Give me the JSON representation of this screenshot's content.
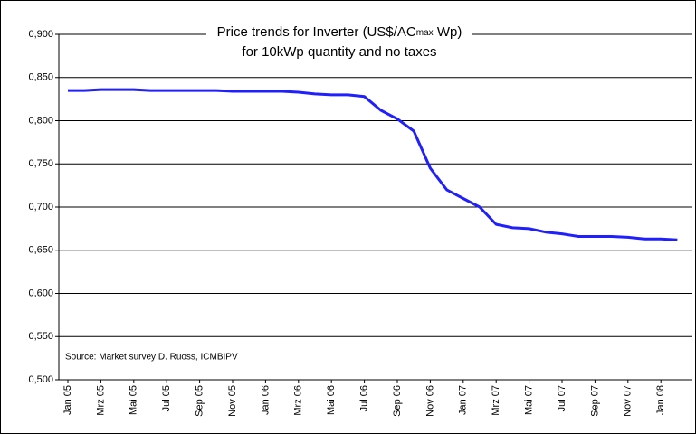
{
  "chart_data": {
    "type": "line",
    "title": [
      "Price trends for Inverter (US$/AC",
      "max",
      " Wp)"
    ],
    "subtitle": "for 10kWp quantity and no taxes",
    "annotation": "Source: Market survey D. Ruoss, ICMBIPV",
    "categories": [
      "Jan 05",
      null,
      "Mrz 05",
      null,
      "Mai 05",
      null,
      "Jul 05",
      null,
      "Sep 05",
      null,
      "Nov 05",
      null,
      "Jan 06",
      null,
      "Mrz 06",
      null,
      "Mai 06",
      null,
      "Jul 06",
      null,
      "Sep 06",
      null,
      "Nov 06",
      null,
      "Jan 07",
      null,
      "Mrz 07",
      null,
      "Mai 07",
      null,
      "Jul 07",
      null,
      "Sep 07",
      null,
      "Nov 07",
      null,
      "Jan 08",
      null
    ],
    "values": [
      0.835,
      0.835,
      0.836,
      0.836,
      0.836,
      0.835,
      0.835,
      0.835,
      0.835,
      0.835,
      0.834,
      0.834,
      0.834,
      0.834,
      0.833,
      0.831,
      0.83,
      0.83,
      0.828,
      0.812,
      0.802,
      0.788,
      0.745,
      0.72,
      0.71,
      0.7,
      0.68,
      0.676,
      0.675,
      0.671,
      0.669,
      0.666,
      0.666,
      0.666,
      0.665,
      0.663,
      0.663,
      0.662
    ],
    "color": "#2020ff",
    "ylim": [
      0.5,
      0.9
    ],
    "yticks": [
      {
        "value": 0.5,
        "label": "0,500"
      },
      {
        "value": 0.55,
        "label": "0,550"
      },
      {
        "value": 0.6,
        "label": "0,600"
      },
      {
        "value": 0.65,
        "label": "0,650"
      },
      {
        "value": 0.7,
        "label": "0,700"
      },
      {
        "value": 0.75,
        "label": "0,750"
      },
      {
        "value": 0.8,
        "label": "0,800"
      },
      {
        "value": 0.85,
        "label": "0,850"
      },
      {
        "value": 0.9,
        "label": "0,900"
      }
    ],
    "grid": true
  }
}
